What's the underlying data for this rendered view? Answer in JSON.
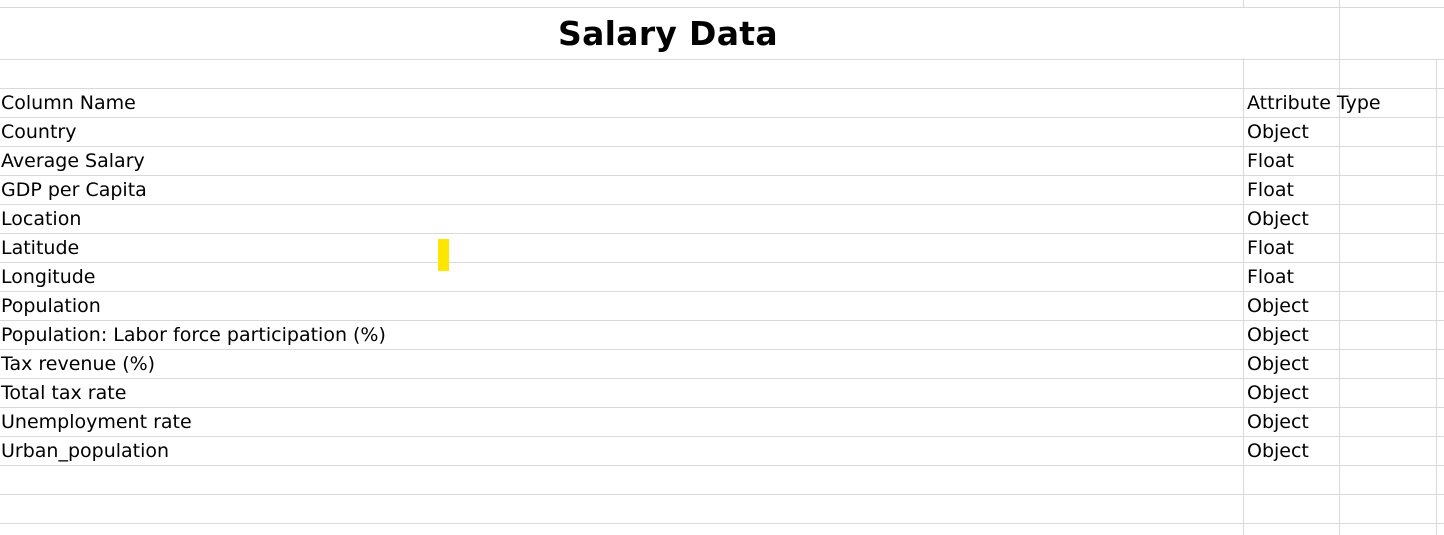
{
  "sheet": {
    "title": "Salary Data",
    "header": {
      "column_name": "Column Name",
      "attribute_type": "Attribute Type"
    },
    "rows": [
      {
        "name": "Country",
        "type": "Object"
      },
      {
        "name": "Average Salary",
        "type": "Float"
      },
      {
        "name": "GDP per Capita",
        "type": "Float"
      },
      {
        "name": "Location",
        "type": "Object"
      },
      {
        "name": "Latitude",
        "type": "Float"
      },
      {
        "name": "Longitude",
        "type": "Float"
      },
      {
        "name": "Population",
        "type": "Object"
      },
      {
        "name": "Population: Labor force participation (%)",
        "type": "Object"
      },
      {
        "name": "Tax revenue (%)",
        "type": "Object"
      },
      {
        "name": "Total tax rate",
        "type": "Object"
      },
      {
        "name": "Unemployment rate",
        "type": "Object"
      },
      {
        "name": "Urban_population",
        "type": "Object"
      }
    ],
    "marker_color": "#ffe600",
    "gridline_color": "#d9d9d9"
  }
}
